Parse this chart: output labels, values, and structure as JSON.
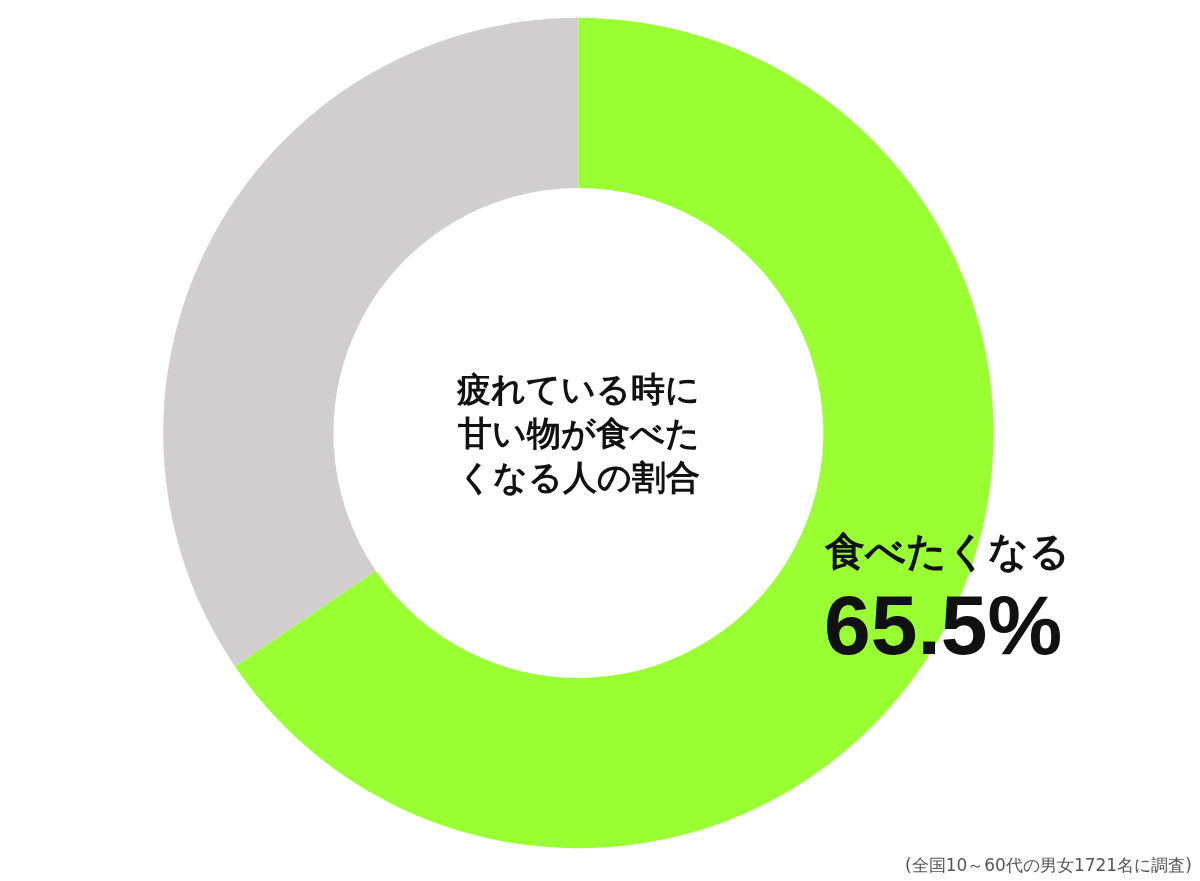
{
  "chart_data": {
    "type": "donut",
    "title": "疲れている時に甘い物が食べたくなる人の割合",
    "categories": [
      "食べたくなる",
      null
    ],
    "values": [
      65.5,
      34.5
    ],
    "colors": [
      "#99ff33",
      "#d0cece"
    ],
    "value_labels": [
      "65.5%",
      null
    ],
    "annotations": [
      "(全国10～60代の男女1721名に調査)"
    ]
  }
}
